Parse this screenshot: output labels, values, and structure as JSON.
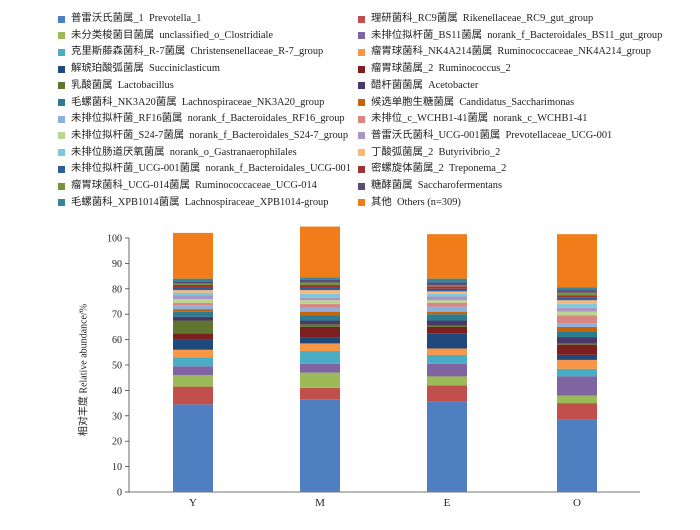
{
  "legend": [
    {
      "cn": "普雷沃氏菌属_1",
      "en": "Prevotella_1",
      "color": "#4f7fc0"
    },
    {
      "cn": "理研菌科_RC9菌属",
      "en": "Rikenellaceae_RC9_gut_group",
      "color": "#c1504d"
    },
    {
      "cn": "未分类梭菌目菌属",
      "en": "unclassified_o_Clostridiale",
      "color": "#9bbb59"
    },
    {
      "cn": "未排位拟杆菌_BS11菌属",
      "en": "norank_f_Bacteroidales_BS11_gut_group",
      "color": "#8064a2"
    },
    {
      "cn": "克里斯藤森菌科_R-7菌属",
      "en": "Christensenellaceae_R-7_group",
      "color": "#4bacc6"
    },
    {
      "cn": "瘤胃球菌科_NK4A214菌属",
      "en": "Ruminococcaceae_NK4A214_group",
      "color": "#f79646"
    },
    {
      "cn": "解琥珀酸弧菌属",
      "en": "Succiniclasticum",
      "color": "#1f497d"
    },
    {
      "cn": "瘤胃球菌属_2",
      "en": "Ruminococcus_2",
      "color": "#7b1f1f"
    },
    {
      "cn": "乳酸菌属",
      "en": "Lactobacillus",
      "color": "#5f7530"
    },
    {
      "cn": "醋杆菌菌属",
      "en": "Acetobacter",
      "color": "#4a3868"
    },
    {
      "cn": "毛螺菌科_NK3A20菌属",
      "en": "Lachnospiraceae_NK3A20_group",
      "color": "#2c7b8e"
    },
    {
      "cn": "候选单胞生糖菌属",
      "en": "Candidatus_Saccharimonas",
      "color": "#c4640f"
    },
    {
      "cn": "未排位拟杆菌_RF16菌属",
      "en": "norank_f_Bacteroidales_RF16_group",
      "color": "#8fb0db"
    },
    {
      "cn": "未排位_c_WCHB1-41菌属",
      "en": "norank_c_WCHB1-41",
      "color": "#d88683"
    },
    {
      "cn": "未排位拟杆菌_S24-7菌属",
      "en": "norank_f_Bacteroidales_S24-7_group",
      "color": "#bcd68f"
    },
    {
      "cn": "普雷沃氏菌科_UCG-001菌属",
      "en": "Prevotellaceae_UCG-001",
      "color": "#a996c4"
    },
    {
      "cn": "未排位肠道厌氧菌属",
      "en": "norank_o_Gastranaerophilales",
      "color": "#7fc8dc"
    },
    {
      "cn": "丁酸弧菌属_2",
      "en": "Butyrivibrio_2",
      "color": "#f9b77a"
    },
    {
      "cn": "未排位拟杆菌_UCG-001菌属",
      "en": "norank_f_Bacteroidales_UCG-001",
      "color": "#2f5f9a"
    },
    {
      "cn": "密螺旋体菌属_2",
      "en": "Treponema_2",
      "color": "#9e3532"
    },
    {
      "cn": "瘤胃球菌科_UCG-014菌属",
      "en": "Ruminococcaceae_UCG-014",
      "color": "#77933c"
    },
    {
      "cn": "糖酵菌属",
      "en": "Saccharofermentans",
      "color": "#5c4a7a"
    },
    {
      "cn": "毛螺菌科_XPB1014菌属",
      "en": "Lachnospiraceae_XPB1014-group",
      "color": "#31859c"
    },
    {
      "cn": "其他",
      "en": "Others (n=309)",
      "color": "#f07c1a"
    }
  ],
  "axes": {
    "ylabel": "相对丰度 Relative abundance/%",
    "yticks": [
      "0",
      "10",
      "20",
      "30",
      "40",
      "50",
      "60",
      "70",
      "80",
      "90",
      "100"
    ]
  },
  "chart_data": {
    "type": "bar",
    "stacked": true,
    "categories": [
      "Y",
      "M",
      "E",
      "O"
    ],
    "ylim": [
      0,
      100
    ],
    "ylabel": "相对丰度 Relative abundance/%",
    "grid": false,
    "legend_position": "top",
    "series": [
      {
        "name": "Prevotella_1",
        "values": [
          34.5,
          36.5,
          35.5,
          28.5
        ]
      },
      {
        "name": "Rikenellaceae_RC9_gut_group",
        "values": [
          7.0,
          4.5,
          6.5,
          6.5
        ]
      },
      {
        "name": "unclassified_o_Clostridiale",
        "values": [
          4.5,
          6.0,
          3.5,
          3.0
        ]
      },
      {
        "name": "norank_f_Bacteroidales_BS11_gut_group",
        "values": [
          3.5,
          3.5,
          5.0,
          7.5
        ]
      },
      {
        "name": "Christensenellaceae_R-7_group",
        "values": [
          3.5,
          5.0,
          3.5,
          3.0
        ]
      },
      {
        "name": "Ruminococcaceae_NK4A214_group",
        "values": [
          3.0,
          3.0,
          2.5,
          3.5
        ]
      },
      {
        "name": "Succiniclasticum",
        "values": [
          4.0,
          2.5,
          6.0,
          2.0
        ]
      },
      {
        "name": "Ruminococcus_2",
        "values": [
          2.5,
          4.0,
          2.5,
          4.0
        ]
      },
      {
        "name": "Lactobacillus",
        "values": [
          5.0,
          1.0,
          0.5,
          0.5
        ]
      },
      {
        "name": "Acetobacter",
        "values": [
          1.5,
          1.5,
          2.0,
          2.5
        ]
      },
      {
        "name": "Lachnospiraceae_NK3A20_group",
        "values": [
          2.0,
          2.0,
          2.5,
          2.0
        ]
      },
      {
        "name": "Candidatus_Saccharimonas",
        "values": [
          1.0,
          1.5,
          1.0,
          2.0
        ]
      },
      {
        "name": "norank_f_Bacteroidales_RF16_group",
        "values": [
          1.5,
          1.5,
          2.0,
          1.5
        ]
      },
      {
        "name": "norank_c_WCHB1-41",
        "values": [
          1.0,
          1.5,
          1.5,
          3.0
        ]
      },
      {
        "name": "norank_f_Bacteroidales_S24-7_group",
        "values": [
          1.5,
          1.5,
          1.0,
          1.5
        ]
      },
      {
        "name": "Prevotellaceae_UCG-001",
        "values": [
          1.5,
          1.0,
          1.5,
          1.5
        ]
      },
      {
        "name": "norank_o_Gastranaerophilales",
        "values": [
          1.0,
          1.5,
          1.0,
          1.5
        ]
      },
      {
        "name": "Butyrivibrio_2",
        "values": [
          1.0,
          1.5,
          1.0,
          1.5
        ]
      },
      {
        "name": "norank_f_Bacteroidales_UCG-001",
        "values": [
          1.0,
          1.0,
          1.0,
          1.0
        ]
      },
      {
        "name": "Treponema_2",
        "values": [
          1.0,
          1.0,
          1.0,
          1.0
        ]
      },
      {
        "name": "Ruminococcaceae_UCG-014",
        "values": [
          0.5,
          1.0,
          0.5,
          1.0
        ]
      },
      {
        "name": "Saccharofermentans",
        "values": [
          1.0,
          1.0,
          1.0,
          1.0
        ]
      },
      {
        "name": "Lachnospiraceae_XPB1014-group",
        "values": [
          1.0,
          1.0,
          1.5,
          1.0
        ]
      },
      {
        "name": "Others (n=309)",
        "values": [
          18.0,
          20.0,
          17.5,
          21.0
        ]
      }
    ]
  }
}
